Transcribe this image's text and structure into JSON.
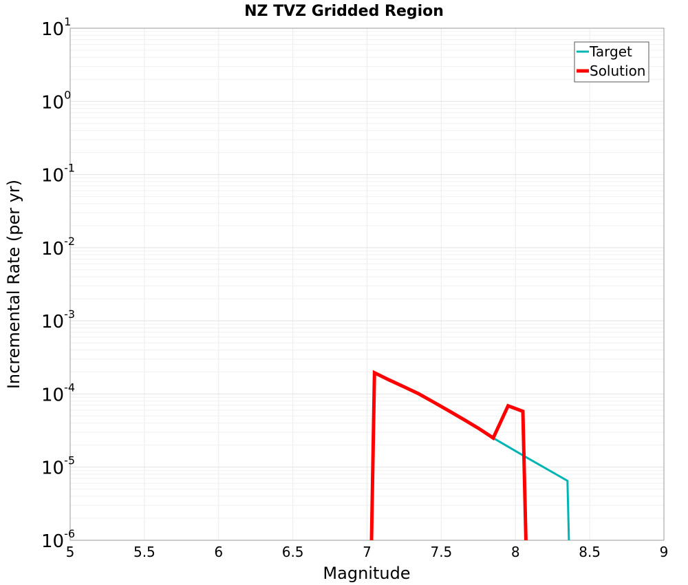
{
  "chart_data": {
    "type": "line",
    "title": "NZ TVZ Gridded Region",
    "xlabel": "Magnitude",
    "ylabel": "Incremental Rate (per yr)",
    "xlim": [
      5,
      9
    ],
    "ylim": [
      1e-06,
      10
    ],
    "yscale": "log",
    "grid": true,
    "legend_position": "top-right",
    "x_ticks": [
      "5",
      "5.5",
      "6",
      "6.5",
      "7",
      "7.5",
      "8",
      "8.5",
      "9"
    ],
    "y_ticks": [
      {
        "base": "10",
        "exp": "1"
      },
      {
        "base": "10",
        "exp": "0"
      },
      {
        "base": "10",
        "exp": "-1"
      },
      {
        "base": "10",
        "exp": "-2"
      },
      {
        "base": "10",
        "exp": "-3"
      },
      {
        "base": "10",
        "exp": "-4"
      },
      {
        "base": "10",
        "exp": "-5"
      },
      {
        "base": "10",
        "exp": "-6"
      }
    ],
    "series": [
      {
        "name": "Target",
        "color": "#00b4b4",
        "points": [
          [
            7.85,
            2.5e-05
          ],
          [
            8.05,
            1.45e-05
          ],
          [
            8.35,
            6.5e-06
          ],
          [
            8.36,
            1e-06
          ]
        ]
      },
      {
        "name": "Solution",
        "color": "#ff0000",
        "points": [
          [
            7.03,
            1e-06
          ],
          [
            7.05,
            0.000195
          ],
          [
            7.15,
            0.000155
          ],
          [
            7.25,
            0.000125
          ],
          [
            7.35,
            0.0001
          ],
          [
            7.45,
            7.7e-05
          ],
          [
            7.55,
            5.9e-05
          ],
          [
            7.65,
            4.5e-05
          ],
          [
            7.75,
            3.4e-05
          ],
          [
            7.85,
            2.5e-05
          ],
          [
            7.95,
            6.9e-05
          ],
          [
            8.05,
            5.8e-05
          ],
          [
            8.07,
            1e-06
          ]
        ]
      }
    ]
  }
}
